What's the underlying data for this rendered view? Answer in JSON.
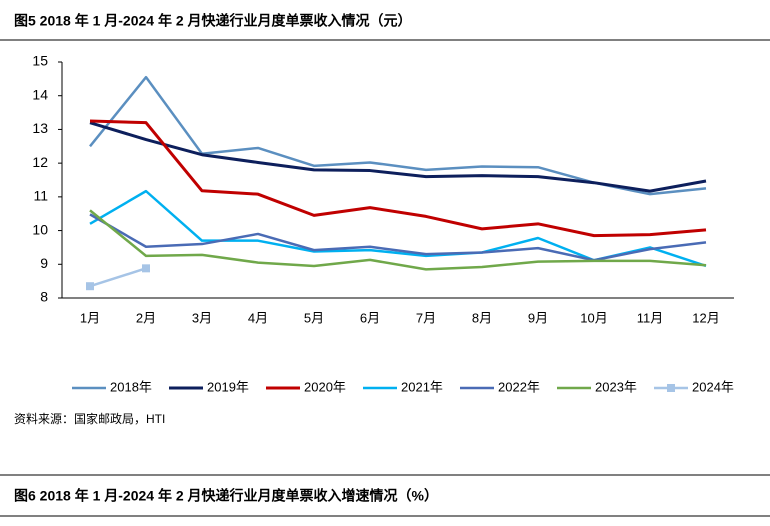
{
  "figure_title": "图5  2018 年 1 月-2024 年 2 月快递行业月度单票收入情况（元）",
  "chart_data": {
    "type": "line",
    "categories": [
      "1月",
      "2月",
      "3月",
      "4月",
      "5月",
      "6月",
      "7月",
      "8月",
      "9月",
      "10月",
      "11月",
      "12月"
    ],
    "ylim": [
      8,
      15
    ],
    "yticks": [
      8,
      9,
      10,
      11,
      12,
      13,
      14,
      15
    ],
    "grid": false,
    "legend": "bottom",
    "series": [
      {
        "name": "2018年",
        "color": "#5b8fc0",
        "values": [
          12.5,
          14.55,
          12.28,
          12.45,
          11.92,
          12.02,
          11.8,
          11.9,
          11.88,
          11.42,
          11.08,
          11.25
        ]
      },
      {
        "name": "2019年",
        "color": "#0d1f5c",
        "values": [
          13.2,
          12.7,
          12.25,
          12.02,
          11.8,
          11.78,
          11.6,
          11.63,
          11.6,
          11.42,
          11.17,
          11.47
        ]
      },
      {
        "name": "2020年",
        "color": "#c00000",
        "values": [
          13.25,
          13.2,
          11.18,
          11.08,
          10.45,
          10.68,
          10.42,
          10.05,
          10.2,
          9.85,
          9.88,
          10.02
        ]
      },
      {
        "name": "2021年",
        "color": "#00b0f0",
        "values": [
          10.2,
          11.17,
          9.7,
          9.7,
          9.38,
          9.42,
          9.25,
          9.35,
          9.78,
          9.12,
          9.5,
          8.95
        ]
      },
      {
        "name": "2022年",
        "color": "#4a6bb5",
        "values": [
          10.48,
          9.52,
          9.6,
          9.9,
          9.42,
          9.52,
          9.3,
          9.35,
          9.48,
          9.12,
          9.45,
          9.65
        ]
      },
      {
        "name": "2023年",
        "color": "#70a84a",
        "values": [
          10.6,
          9.25,
          9.28,
          9.05,
          8.95,
          9.13,
          8.85,
          8.92,
          9.08,
          9.1,
          9.1,
          8.97
        ]
      },
      {
        "name": "2024年",
        "color": "#a6c4e6",
        "marker": "square",
        "values": [
          8.35,
          8.88,
          null,
          null,
          null,
          null,
          null,
          null,
          null,
          null,
          null,
          null
        ]
      }
    ]
  },
  "source": "资料来源：国家邮政局，HTI",
  "next_figure_title": "图6  2018 年 1 月-2024 年 2 月快递行业月度单票收入增速情况（%）"
}
